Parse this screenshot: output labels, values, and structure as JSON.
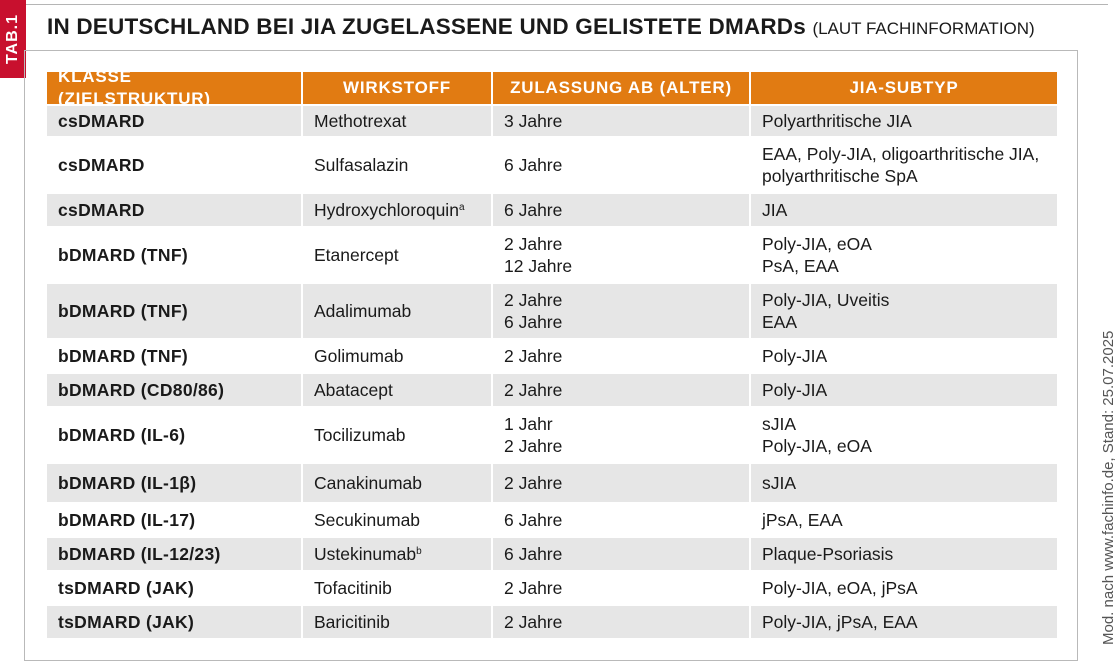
{
  "tab_label": "TAB.1",
  "title": {
    "main": "IN DEUTSCHLAND BEI JIA ZUGELASSENE UND GELISTETE DMARDs",
    "sub": "(LAUT FACHINFORMATION)"
  },
  "side_note": "Mod. nach www.fachinfo.de, Stand: 25.07.2025",
  "table": {
    "headers": [
      "KLASSE (ZIELSTRUKTUR)",
      "WIRKSTOFF",
      "ZULASSUNG AB (ALTER)",
      "JIA-SUBTYP"
    ],
    "rows": [
      {
        "klasse": "csDMARD",
        "wirkstoff": "Methotrexat",
        "sup": "",
        "zulassung": [
          "3 Jahre"
        ],
        "subtyp": [
          "Polyarthritische JIA"
        ]
      },
      {
        "klasse": "csDMARD",
        "wirkstoff": "Sulfasalazin",
        "sup": "",
        "zulassung": [
          "6 Jahre"
        ],
        "subtyp": [
          "EAA, Poly-JIA, oligoarthritische JIA,",
          "polyarthritische SpA"
        ]
      },
      {
        "klasse": "csDMARD",
        "wirkstoff": "Hydroxychloroquin",
        "sup": "a",
        "zulassung": [
          "6 Jahre"
        ],
        "subtyp": [
          "JIA"
        ]
      },
      {
        "klasse": "bDMARD (TNF)",
        "wirkstoff": "Etanercept",
        "sup": "",
        "zulassung": [
          "2 Jahre",
          "12 Jahre"
        ],
        "subtyp": [
          "Poly-JIA, eOA",
          "PsA, EAA"
        ]
      },
      {
        "klasse": "bDMARD (TNF)",
        "wirkstoff": "Adalimumab",
        "sup": "",
        "zulassung": [
          "2 Jahre",
          "6 Jahre"
        ],
        "subtyp": [
          "Poly-JIA, Uveitis",
          "EAA"
        ]
      },
      {
        "klasse": "bDMARD (TNF)",
        "wirkstoff": "Golimumab",
        "sup": "",
        "zulassung": [
          "2 Jahre"
        ],
        "subtyp": [
          "Poly-JIA"
        ]
      },
      {
        "klasse": "bDMARD (CD80/86)",
        "wirkstoff": "Abatacept",
        "sup": "",
        "zulassung": [
          "2 Jahre"
        ],
        "subtyp": [
          "Poly-JIA"
        ]
      },
      {
        "klasse": "bDMARD (IL-6)",
        "wirkstoff": "Tocilizumab",
        "sup": "",
        "zulassung": [
          "1 Jahr",
          "2 Jahre"
        ],
        "subtyp": [
          "sJIA",
          "Poly-JIA, eOA"
        ]
      },
      {
        "klasse": "bDMARD (IL-1β)",
        "wirkstoff": "Canakinumab",
        "sup": "",
        "zulassung": [
          "2 Jahre"
        ],
        "subtyp": [
          "sJIA"
        ]
      },
      {
        "klasse": "bDMARD (IL-17)",
        "wirkstoff": "Secukinumab",
        "sup": "",
        "zulassung": [
          "6 Jahre"
        ],
        "subtyp": [
          "jPsA, EAA"
        ]
      },
      {
        "klasse": "bDMARD (IL-12/23)",
        "wirkstoff": "Ustekinumab",
        "sup": "b",
        "zulassung": [
          "6 Jahre"
        ],
        "subtyp": [
          "Plaque-Psoriasis"
        ]
      },
      {
        "klasse": "tsDMARD (JAK)",
        "wirkstoff": "Tofacitinib",
        "sup": "",
        "zulassung": [
          "2 Jahre"
        ],
        "subtyp": [
          "Poly-JIA, eOA, jPsA"
        ]
      },
      {
        "klasse": "tsDMARD (JAK)",
        "wirkstoff": "Baricitinib",
        "sup": "",
        "zulassung": [
          "2 Jahre"
        ],
        "subtyp": [
          "Poly-JIA, jPsA, EAA"
        ]
      }
    ]
  },
  "colors": {
    "header_bg": "#e17b12",
    "row_shade": "#e6e6e6",
    "tab_label_bg": "#c8102e"
  }
}
